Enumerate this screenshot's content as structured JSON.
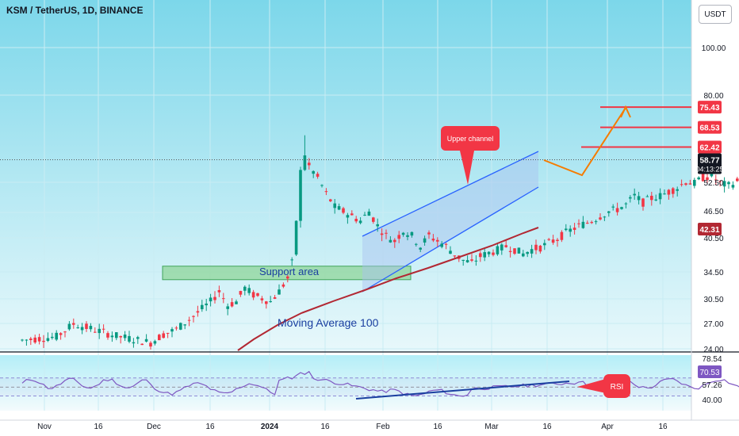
{
  "header": {
    "title": "KSM / TetherUS, 1D, BINANCE",
    "currency": "USDT"
  },
  "chart_data": {
    "type": "candlestick",
    "title": "KSM / TetherUS, 1D, BINANCE",
    "price_axis": {
      "scale": "log",
      "ticks": [
        "100.00",
        "80.00",
        "52.50",
        "46.50",
        "40.50",
        "34.50",
        "30.50",
        "27.00",
        "24.00"
      ],
      "labels": [
        {
          "value": 75.43,
          "text": "75.43",
          "color": "#f23645"
        },
        {
          "value": 68.53,
          "text": "68.53",
          "color": "#f23645"
        },
        {
          "value": 62.42,
          "text": "62.42",
          "color": "#f23645"
        },
        {
          "value": 58.77,
          "text": "58.77",
          "sub": "04:13:25",
          "color": "#131722"
        },
        {
          "value": 42.31,
          "text": "42.31",
          "color": "#b22833"
        }
      ]
    },
    "time_axis": {
      "ticks": [
        "Nov",
        "16",
        "Dec",
        "16",
        "2024",
        "16",
        "Feb",
        "16",
        "Mar",
        "16",
        "Apr",
        "16"
      ],
      "bold": "2024"
    },
    "resistance_levels": [
      75.43,
      68.53,
      62.42
    ],
    "last_price": 58.77,
    "countdown": "04:13:25",
    "moving_average": {
      "name": "Moving Average 100",
      "latest": 42.31,
      "color": "#b22833"
    },
    "support_zone": {
      "label": "Support area",
      "from": 33.3,
      "to": 35.5
    },
    "channel_label": "Upper channel",
    "rsi": {
      "label": "RSI",
      "latest": 70.53,
      "ticks": [
        "78.54",
        "57.26",
        "40.00"
      ],
      "highlight": "70.53"
    }
  }
}
